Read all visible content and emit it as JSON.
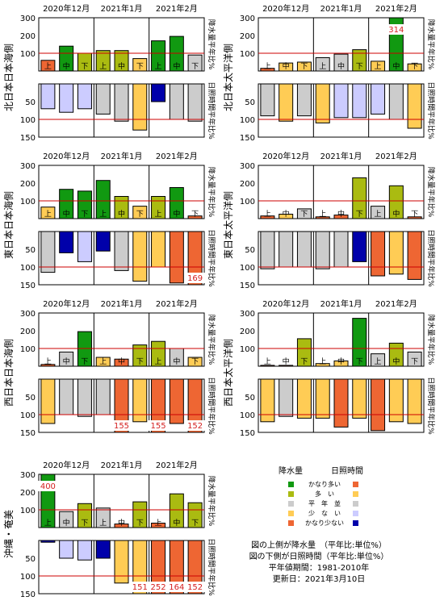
{
  "months": [
    "2020年12月",
    "2021年1月",
    "2021年2月"
  ],
  "dekads": [
    "上",
    "中",
    "下"
  ],
  "precip_axis_label": "降水量平年比%",
  "sunshine_axis_label": "日照時間平年比%",
  "precip_ticks": [
    "300",
    "200",
    "100"
  ],
  "sun_ticks": [
    "50",
    "100",
    "150"
  ],
  "colors": {
    "precip_very_much": "#119911",
    "precip_much": "#aabb11",
    "normal": "#cccccc",
    "precip_little": "#ffcc55",
    "precip_very_little": "#ee6633",
    "sun_very_much": "#ee6633",
    "sun_much": "#ffcc55",
    "sun_little": "#ccccff",
    "sun_very_little": "#0000aa",
    "reference_line": "#cc0000"
  },
  "legend": {
    "precip_header": "降水量",
    "sun_header": "日照時間",
    "categories": [
      "かなり多い",
      "多　い",
      "平　年　並",
      "少　な　い",
      "かなり少ない"
    ],
    "notes": [
      "図の上側が降水量　（平年比:単位%）",
      "図の下側が日照時間（平年比:単位%）",
      "平年値期間：1981-2010年",
      "更新日：2021年3月10日"
    ]
  },
  "chart_data": [
    {
      "type": "bar",
      "region": "北日本日本海側",
      "categories": [
        "2020年12月 上",
        "2020年12月 中",
        "2020年12月 下",
        "2021年1月 上",
        "2021年1月 中",
        "2021年1月 下",
        "2021年2月 上",
        "2021年2月 中",
        "2021年2月 下"
      ],
      "precipitation": [
        60,
        140,
        100,
        115,
        115,
        70,
        170,
        195,
        90
      ],
      "precip_class": [
        "very_little",
        "very_much",
        "much",
        "much",
        "much",
        "little",
        "very_much",
        "very_much",
        "normal"
      ],
      "sunshine": [
        70,
        80,
        70,
        85,
        105,
        130,
        50,
        100,
        105
      ],
      "sun_class": [
        "little",
        "little",
        "little",
        "normal",
        "normal",
        "much",
        "very_little",
        "normal",
        "normal"
      ],
      "precip_labels": [],
      "sun_labels": [],
      "precip_ylim": [
        0,
        300
      ],
      "sun_ylim": [
        0,
        150
      ]
    },
    {
      "type": "bar",
      "region": "北日本太平洋側",
      "categories": [
        "2020年12月 上",
        "2020年12月 中",
        "2020年12月 下",
        "2021年1月 上",
        "2021年1月 中",
        "2021年1月 下",
        "2021年2月 上",
        "2021年2月 中",
        "2021年2月 下"
      ],
      "precipitation": [
        15,
        45,
        50,
        75,
        95,
        120,
        55,
        314,
        40
      ],
      "precip_class": [
        "very_little",
        "little",
        "little",
        "normal",
        "normal",
        "much",
        "little",
        "very_much",
        "little"
      ],
      "sunshine": [
        90,
        105,
        90,
        110,
        95,
        95,
        85,
        100,
        125
      ],
      "sun_class": [
        "normal",
        "much",
        "normal",
        "much",
        "little",
        "little",
        "little",
        "normal",
        "much"
      ],
      "precip_labels": [
        {
          "index": 7,
          "text": "314"
        }
      ],
      "sun_labels": [],
      "precip_ylim": [
        0,
        300
      ],
      "sun_ylim": [
        0,
        150
      ]
    },
    {
      "type": "bar",
      "region": "東日本日本海側",
      "categories": [
        "2020年12月 上",
        "2020年12月 中",
        "2020年12月 下",
        "2021年1月 上",
        "2021年1月 中",
        "2021年1月 下",
        "2021年2月 上",
        "2021年2月 中",
        "2021年2月 下"
      ],
      "precipitation": [
        65,
        165,
        155,
        215,
        125,
        70,
        125,
        175,
        15
      ],
      "precip_class": [
        "little",
        "very_much",
        "very_much",
        "very_much",
        "much",
        "little",
        "much",
        "very_much",
        "very_little"
      ],
      "sunshine": [
        115,
        60,
        85,
        55,
        110,
        140,
        100,
        145,
        169
      ],
      "sun_class": [
        "normal",
        "very_little",
        "little",
        "very_little",
        "normal",
        "much",
        "much",
        "very_much",
        "very_much"
      ],
      "precip_labels": [],
      "sun_labels": [
        {
          "index": 8,
          "text": "169"
        }
      ],
      "precip_ylim": [
        0,
        300
      ],
      "sun_ylim": [
        0,
        150
      ]
    },
    {
      "type": "bar",
      "region": "東日本太平洋側",
      "categories": [
        "2020年12月 上",
        "2020年12月 中",
        "2020年12月 下",
        "2021年1月 上",
        "2021年1月 中",
        "2021年1月 下",
        "2021年2月 上",
        "2021年2月 中",
        "2021年2月 下"
      ],
      "precipitation": [
        15,
        25,
        55,
        10,
        20,
        230,
        70,
        185,
        10
      ],
      "precip_class": [
        "very_little",
        "little",
        "normal",
        "very_little",
        "very_little",
        "much",
        "normal",
        "much",
        "very_little"
      ],
      "sunshine": [
        105,
        100,
        100,
        105,
        100,
        85,
        125,
        120,
        135
      ],
      "sun_class": [
        "normal",
        "normal",
        "normal",
        "normal",
        "normal",
        "very_little",
        "very_much",
        "much",
        "very_much"
      ],
      "precip_labels": [],
      "sun_labels": [],
      "precip_ylim": [
        0,
        300
      ],
      "sun_ylim": [
        0,
        150
      ]
    },
    {
      "type": "bar",
      "region": "西日本日本海側",
      "categories": [
        "2020年12月 上",
        "2020年12月 中",
        "2020年12月 下",
        "2021年1月 上",
        "2021年1月 中",
        "2021年1月 下",
        "2021年2月 上",
        "2021年2月 中",
        "2021年2月 下"
      ],
      "precipitation": [
        10,
        80,
        195,
        50,
        40,
        120,
        140,
        100,
        50
      ],
      "precip_class": [
        "very_little",
        "normal",
        "very_much",
        "little",
        "very_little",
        "much",
        "much",
        "normal",
        "little"
      ],
      "sunshine": [
        125,
        100,
        105,
        100,
        155,
        120,
        155,
        125,
        152
      ],
      "sun_class": [
        "much",
        "normal",
        "normal",
        "normal",
        "very_much",
        "much",
        "very_much",
        "very_much",
        "very_much"
      ],
      "precip_labels": [],
      "sun_labels": [
        {
          "index": 4,
          "text": "155"
        },
        {
          "index": 6,
          "text": "155"
        },
        {
          "index": 8,
          "text": "152"
        }
      ],
      "precip_ylim": [
        0,
        300
      ],
      "sun_ylim": [
        0,
        150
      ]
    },
    {
      "type": "bar",
      "region": "西日本太平洋側",
      "categories": [
        "2020年12月 上",
        "2020年12月 中",
        "2020年12月 下",
        "2021年1月 上",
        "2021年1月 中",
        "2021年1月 下",
        "2021年2月 上",
        "2021年2月 中",
        "2021年2月 下"
      ],
      "precipitation": [
        5,
        5,
        155,
        15,
        30,
        270,
        70,
        130,
        80
      ],
      "precip_class": [
        "very_little",
        "very_little",
        "much",
        "little",
        "little",
        "very_much",
        "normal",
        "much",
        "normal"
      ],
      "sunshine": [
        120,
        105,
        110,
        110,
        135,
        110,
        145,
        120,
        125
      ],
      "sun_class": [
        "much",
        "normal",
        "much",
        "much",
        "very_much",
        "much",
        "very_much",
        "much",
        "much"
      ],
      "precip_labels": [],
      "sun_labels": [],
      "precip_ylim": [
        0,
        300
      ],
      "sun_ylim": [
        0,
        150
      ]
    },
    {
      "type": "bar",
      "region": "沖縄・奄美",
      "categories": [
        "2020年12月 上",
        "2020年12月 中",
        "2020年12月 下",
        "2021年1月 上",
        "2021年1月 中",
        "2021年1月 下",
        "2021年2月 上",
        "2021年2月 中",
        "2021年2月 下"
      ],
      "precipitation": [
        400,
        90,
        135,
        110,
        20,
        145,
        25,
        190,
        140
      ],
      "precip_class": [
        "very_much",
        "normal",
        "much",
        "normal",
        "very_little",
        "much",
        "very_little",
        "much",
        "much"
      ],
      "sunshine": [
        5,
        50,
        55,
        50,
        120,
        151,
        252,
        164,
        152
      ],
      "sun_class": [
        "very_little",
        "little",
        "little",
        "very_little",
        "much",
        "much",
        "very_much",
        "very_much",
        "very_much"
      ],
      "precip_labels": [
        {
          "index": 0,
          "text": "400"
        }
      ],
      "sun_labels": [
        {
          "index": 5,
          "text": "151"
        },
        {
          "index": 6,
          "text": "252"
        },
        {
          "index": 7,
          "text": "164"
        },
        {
          "index": 8,
          "text": "152"
        }
      ],
      "precip_ylim": [
        0,
        300
      ],
      "sun_ylim": [
        0,
        150
      ]
    }
  ]
}
